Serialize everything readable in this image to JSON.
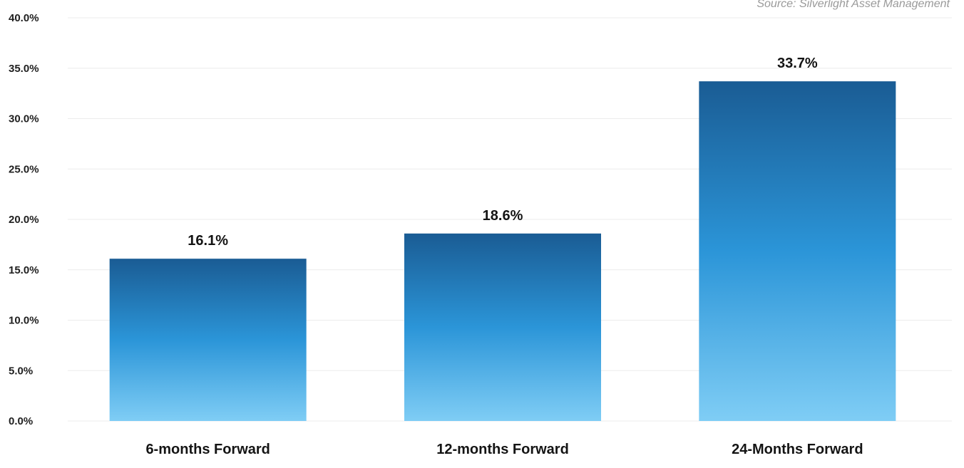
{
  "chart_data": {
    "type": "bar",
    "categories": [
      "6-months Forward",
      "12-months Forward",
      "24-Months Forward"
    ],
    "values": [
      16.1,
      18.6,
      33.7
    ],
    "data_labels": [
      "16.1%",
      "18.6%",
      "33.7%"
    ],
    "title": "",
    "xlabel": "",
    "ylabel": "",
    "ylim": [
      0,
      40
    ],
    "y_ticks": [
      0,
      5,
      10,
      15,
      20,
      25,
      30,
      35,
      40
    ],
    "y_tick_labels": [
      "0.0%",
      "5.0%",
      "10.0%",
      "15.0%",
      "20.0%",
      "25.0%",
      "30.0%",
      "35.0%",
      "40.0%"
    ],
    "grid": true,
    "legend": "none",
    "source": "Source: Silverlight Asset Management",
    "bar_gradient": {
      "top": "#1a5c94",
      "middle": "#2b95d8",
      "bottom": "#7fcdf5"
    }
  }
}
